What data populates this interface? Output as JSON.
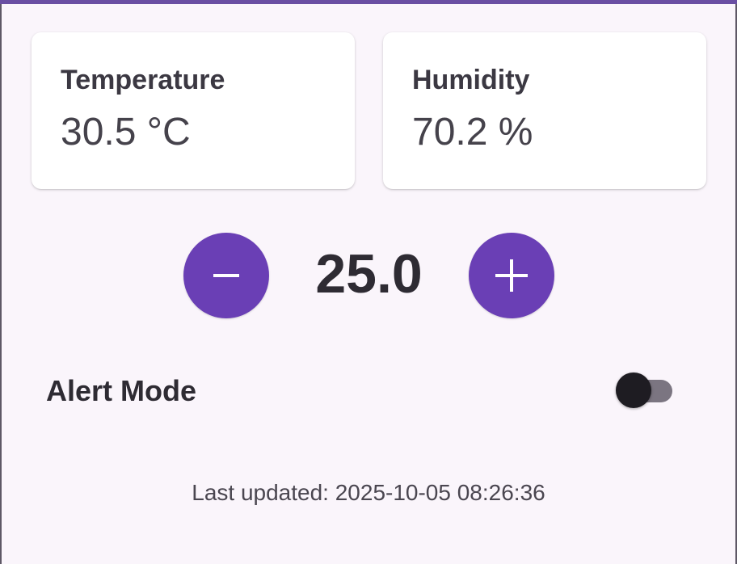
{
  "colors": {
    "accent": "#6a3fb5",
    "background": "#faf5fb",
    "card": "#ffffff",
    "switch_track_off": "#7b7581",
    "switch_thumb_off": "#1e1c22"
  },
  "cards": [
    {
      "title": "Temperature",
      "value": "30.5 °C"
    },
    {
      "title": "Humidity",
      "value": "70.2 %"
    }
  ],
  "stepper": {
    "value": "25.0",
    "decrement_icon": "minus-icon",
    "increment_icon": "plus-icon"
  },
  "alert_mode": {
    "label": "Alert Mode",
    "enabled": false
  },
  "status": {
    "last_updated": "Last updated: 2025-10-05 08:26:36"
  }
}
